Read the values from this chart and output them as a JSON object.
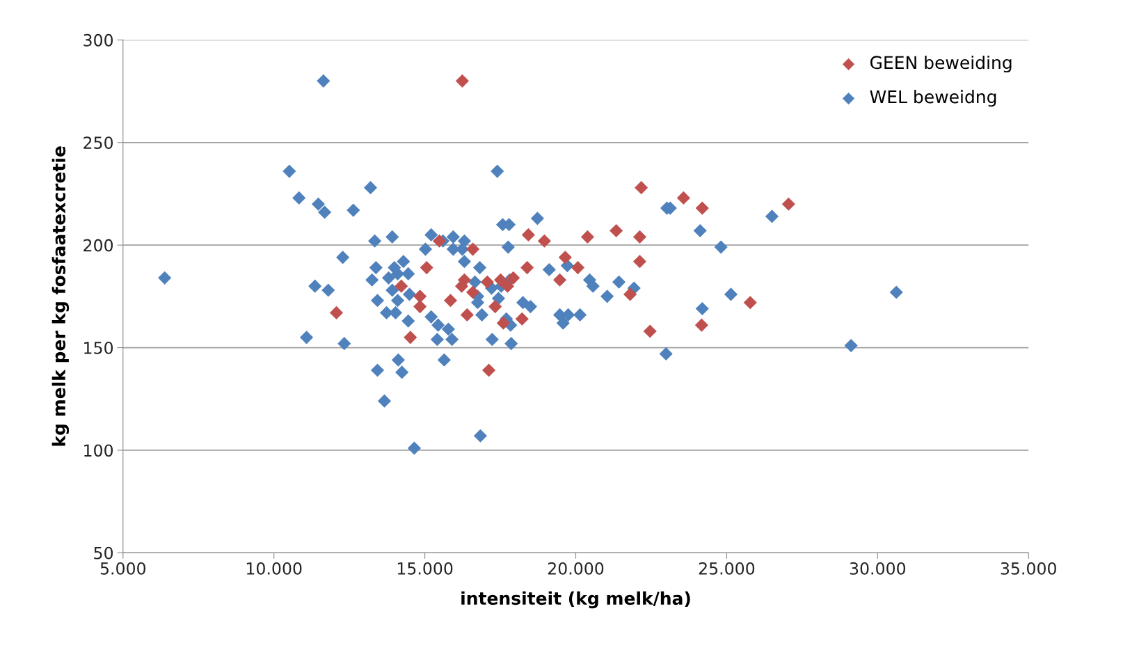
{
  "chart_data": {
    "type": "scatter",
    "xlabel": "intensiteit (kg melk/ha)",
    "ylabel": "kg melk per kg fosfaatexcretie",
    "xlim": [
      5000,
      35000
    ],
    "xticks": [
      {
        "value": 5000,
        "label": "5.000"
      },
      {
        "value": 10000,
        "label": "10.000"
      },
      {
        "value": 15000,
        "label": "15.000"
      },
      {
        "value": 20000,
        "label": "20.000"
      },
      {
        "value": 25000,
        "label": "25.000"
      },
      {
        "value": 30000,
        "label": "30.000"
      },
      {
        "value": 35000,
        "label": "35.000"
      }
    ],
    "ylim": [
      50,
      300
    ],
    "yticks": [
      50,
      100,
      150,
      200,
      250,
      300
    ],
    "grid": "y",
    "legend": "top right",
    "marker": "diamond",
    "series": [
      {
        "name": "GEEN beweiding",
        "color": "#c0504d",
        "x": [
          16240,
          27050,
          22170,
          23570,
          24190,
          21340,
          22120,
          20390,
          18430,
          18960,
          16590,
          15480,
          22120,
          15060,
          18390,
          19650,
          20070,
          17930,
          19470,
          14220,
          16310,
          16220,
          17070,
          17740,
          17510,
          17330,
          14840,
          14840,
          15850,
          16590,
          12070,
          16400,
          18220,
          21800,
          25780,
          24170,
          22460,
          14520,
          17120,
          17600
        ],
        "values": [
          280,
          220,
          228,
          223,
          218,
          207,
          204,
          204,
          205,
          202,
          198,
          202,
          192,
          189,
          189,
          194,
          189,
          184,
          183,
          180,
          183,
          180,
          182,
          180,
          183,
          170,
          175,
          170,
          173,
          177,
          167,
          166,
          164,
          176,
          172,
          161,
          158,
          155,
          139,
          162
        ]
      },
      {
        "name": "WEL beweidng",
        "color": "#4f81bd",
        "x": [
          6380,
          11640,
          10510,
          10830,
          11470,
          11680,
          12630,
          13200,
          17400,
          18730,
          17580,
          17790,
          26500,
          23020,
          23130,
          24120,
          24810,
          13340,
          13920,
          15210,
          15020,
          15600,
          15940,
          16310,
          16240,
          15940,
          16310,
          17760,
          12280,
          13380,
          14290,
          13990,
          14450,
          14100,
          13800,
          13250,
          11360,
          11800,
          13920,
          14490,
          14100,
          13430,
          13730,
          14030,
          14450,
          15210,
          15440,
          15780,
          15410,
          15900,
          15640,
          11080,
          12330,
          14120,
          13430,
          14240,
          13660,
          14650,
          16820,
          16660,
          17210,
          17530,
          17810,
          16750,
          16750,
          17440,
          16890,
          18250,
          18500,
          17700,
          17840,
          17230,
          17860,
          19120,
          19720,
          20460,
          20570,
          21040,
          21430,
          21930,
          19470,
          19750,
          20140,
          19580,
          22990,
          16840,
          24190,
          25140,
          29120,
          30620
        ],
        "values": [
          184,
          280,
          236,
          223,
          220,
          216,
          217,
          228,
          236,
          213,
          210,
          210,
          214,
          218,
          218,
          207,
          199,
          202,
          204,
          205,
          198,
          202,
          204,
          202,
          198,
          198,
          192,
          199,
          194,
          189,
          192,
          189,
          186,
          186,
          184,
          183,
          180,
          178,
          178,
          176,
          173,
          173,
          167,
          167,
          163,
          165,
          161,
          159,
          154,
          154,
          144,
          155,
          152,
          144,
          139,
          138,
          124,
          101,
          189,
          182,
          179,
          180,
          183,
          175,
          172,
          174,
          166,
          172,
          170,
          164,
          161,
          154,
          152,
          188,
          190,
          183,
          180,
          175,
          182,
          179,
          166,
          166,
          166,
          162,
          147,
          107,
          169,
          176,
          151,
          177
        ]
      }
    ]
  }
}
